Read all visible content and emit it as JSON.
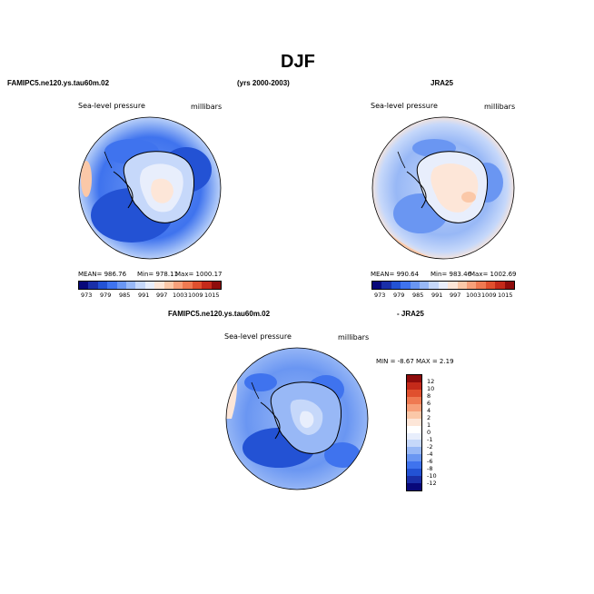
{
  "figure": {
    "title": "DJF",
    "left_header": "FAMIPC5.ne120.ys.tau60m.02",
    "center_header": "(yrs 2000-2003)",
    "right_header": "JRA25",
    "diff_header_left": "FAMIPC5.ne120.ys.tau60m.02",
    "diff_header_right": "- JRA25"
  },
  "panel_model": {
    "variable": "Sea-level pressure",
    "units": "millibars",
    "mean_text": "MEAN= 986.76",
    "min_text": "Min= 978.11",
    "max_text": "Max= 1000.17"
  },
  "panel_obs": {
    "variable": "Sea-level pressure",
    "units": "millibars",
    "mean_text": "MEAN= 990.64",
    "min_text": "Min= 983.46",
    "max_text": "Max= 1002.69"
  },
  "panel_diff": {
    "variable": "Sea-level pressure",
    "units": "millibars",
    "minmax_text": "MIN =   -8.67 MAX =    2.19"
  },
  "colorbar_abs": {
    "ticks": [
      "973",
      "979",
      "985",
      "991",
      "997",
      "1003",
      "1009",
      "1015"
    ],
    "colors": [
      "#08087a",
      "#1a2fa8",
      "#2352d4",
      "#3f73ee",
      "#6a96f2",
      "#98b8f6",
      "#c6d8fa",
      "#e8eefc",
      "#fde6d8",
      "#fbc8a8",
      "#f7a07a",
      "#ef7a52",
      "#e0502e",
      "#c42a1a",
      "#8e0c0c"
    ]
  },
  "colorbar_diff": {
    "ticks": [
      "12",
      "10",
      "8",
      "6",
      "4",
      "2",
      "1",
      "0",
      "-1",
      "-2",
      "-4",
      "-6",
      "-8",
      "-10",
      "-12"
    ],
    "colors": [
      "#8e0c0c",
      "#c42a1a",
      "#e0502e",
      "#ef7a52",
      "#f7a07a",
      "#fbc8a8",
      "#fde6d8",
      "#ffffff",
      "#e8eefc",
      "#c6d8fa",
      "#98b8f6",
      "#6a96f2",
      "#3f73ee",
      "#2352d4",
      "#1a2fa8",
      "#08087a"
    ]
  }
}
